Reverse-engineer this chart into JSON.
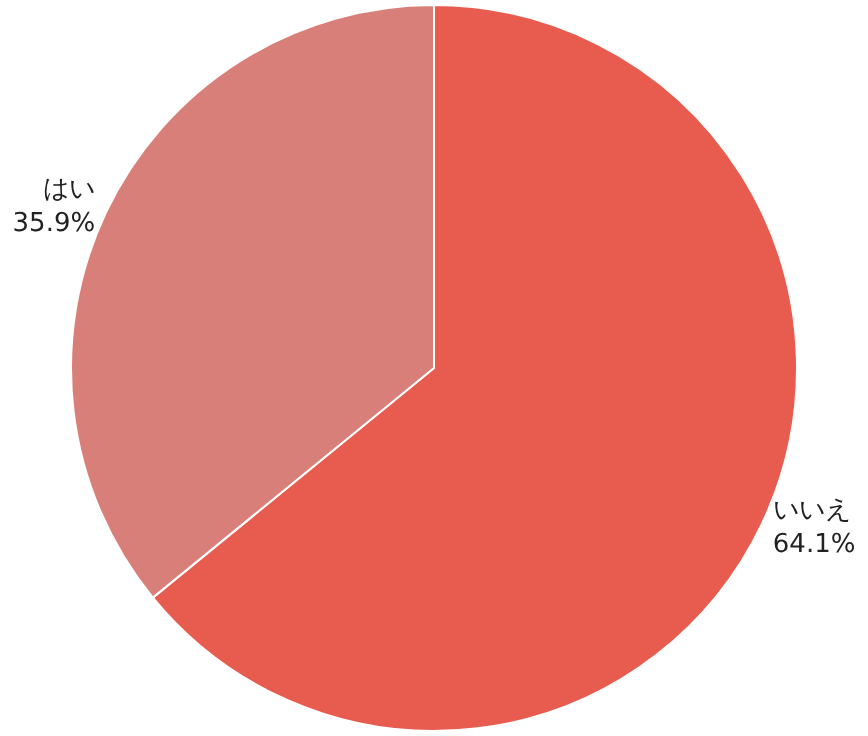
{
  "chart_data": {
    "type": "pie",
    "categories": [
      "いいえ",
      "はい"
    ],
    "values": [
      64.1,
      35.9
    ],
    "colors": [
      "#e85c50",
      "#d97f7a"
    ],
    "value_labels": [
      "64.1%",
      "35.9%"
    ]
  }
}
